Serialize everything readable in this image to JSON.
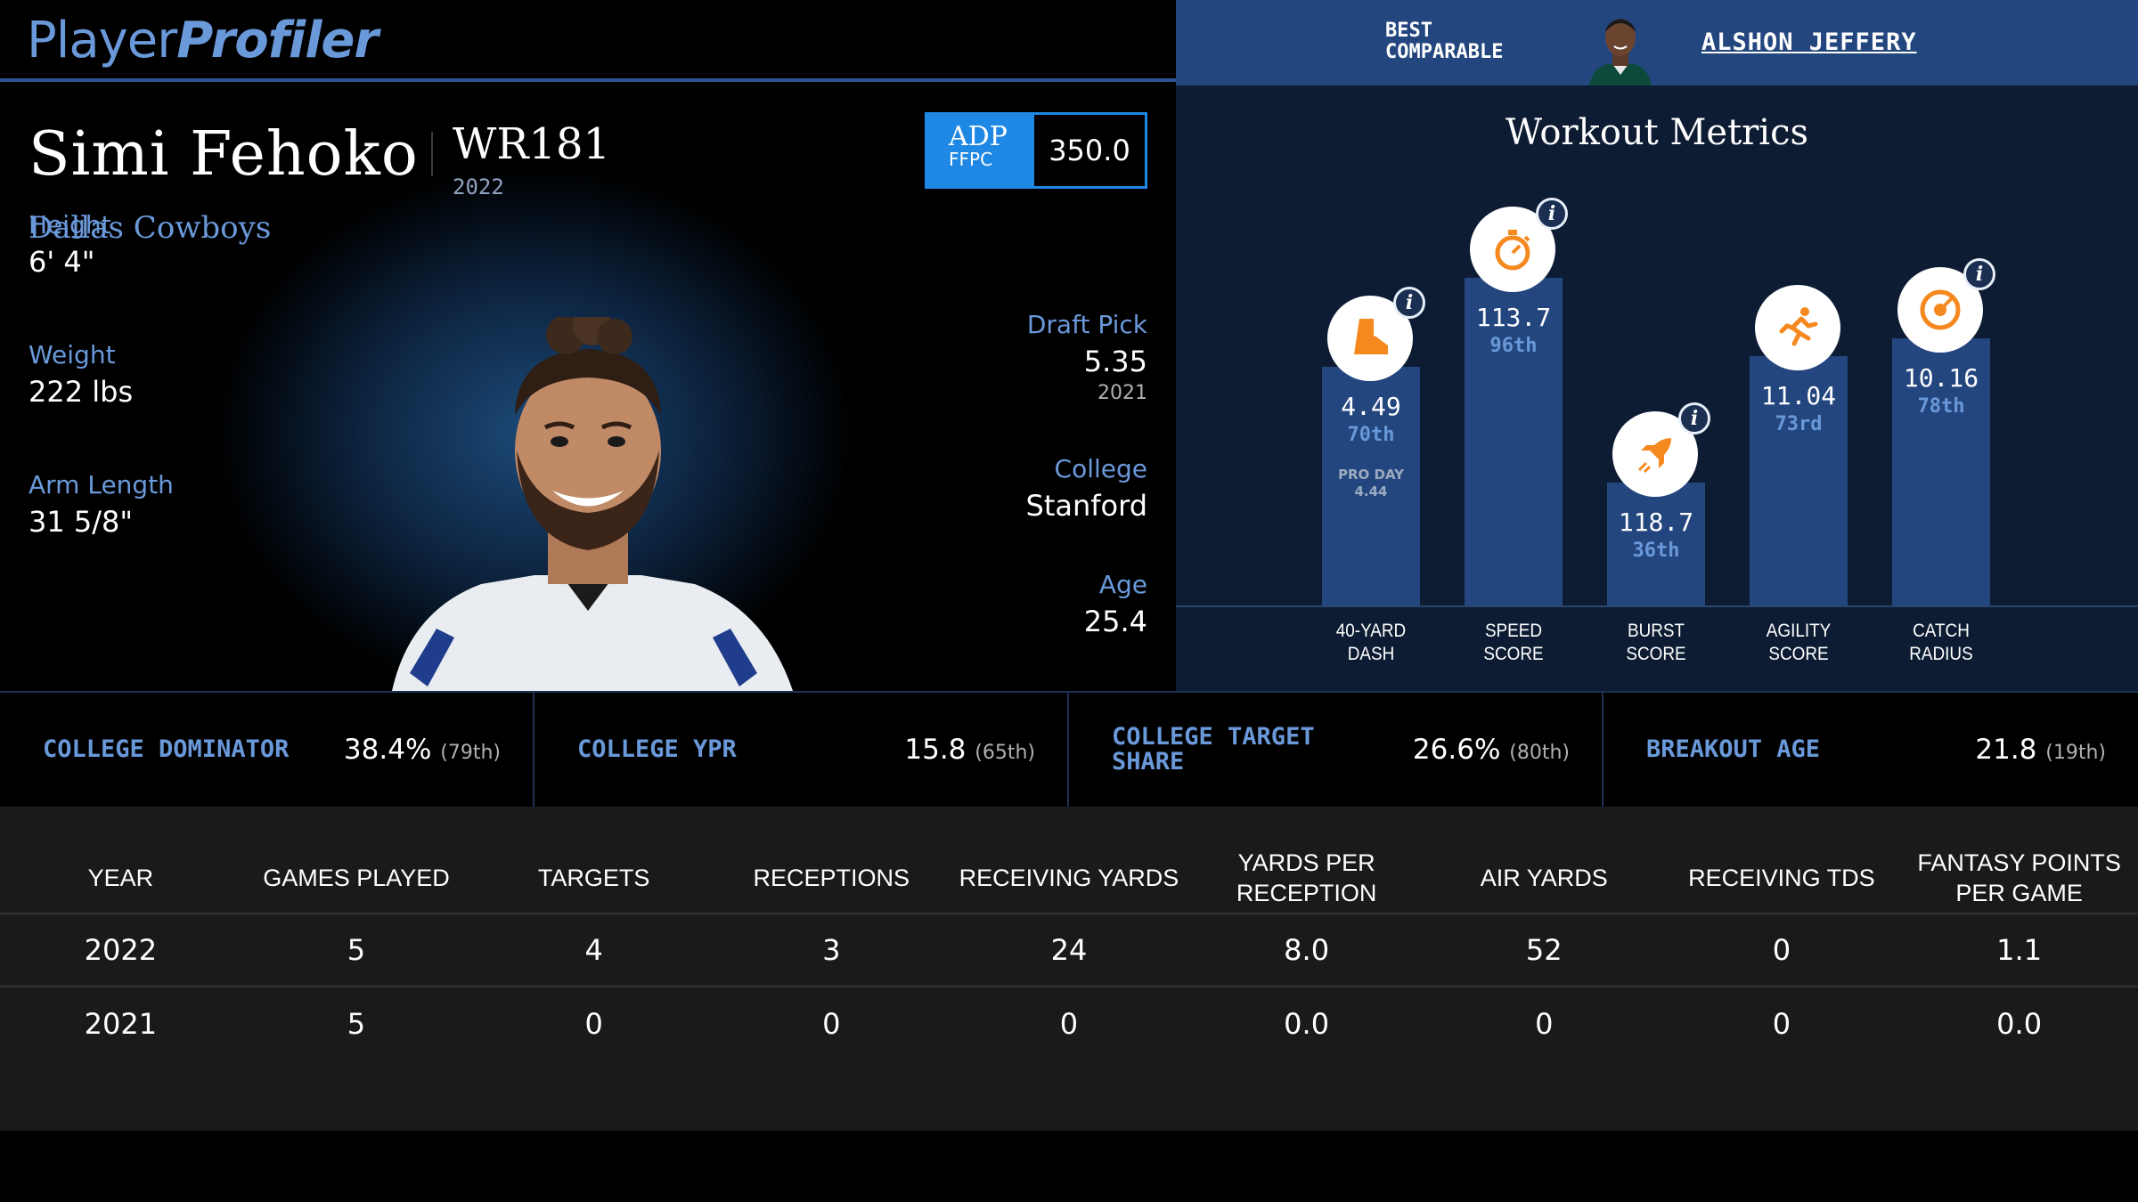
{
  "brand": {
    "logo_part1": "Player",
    "logo_part2": "Profiler"
  },
  "comparable": {
    "label_line1": "BEST",
    "label_line2": "COMPARABLE",
    "name": "ALSHON JEFFERY"
  },
  "player": {
    "name": "Simi Fehoko",
    "position": "WR181",
    "year": "2022",
    "team": "Dallas Cowboys",
    "adp": {
      "label": "ADP",
      "sublabel": "FFPC",
      "value": "350.0"
    },
    "height": {
      "label": "Height",
      "value": "6' 4\""
    },
    "weight": {
      "label": "Weight",
      "value": "222 lbs"
    },
    "arm_length": {
      "label": "Arm Length",
      "value": "31 5/8\""
    },
    "draft_pick": {
      "label": "Draft Pick",
      "value": "5.35",
      "sub": "2021"
    },
    "college": {
      "label": "College",
      "value": "Stanford"
    },
    "age": {
      "label": "Age",
      "value": "25.4"
    }
  },
  "workout": {
    "title": "Workout Metrics",
    "metrics": [
      {
        "icon": "shoe-icon",
        "value": "4.49",
        "percentile": "70th",
        "extra_label": "PRO DAY",
        "extra_value": "4.44",
        "label_line1": "40-YARD",
        "label_line2": "DASH",
        "percentile_num": 70
      },
      {
        "icon": "stopwatch-icon",
        "value": "113.7",
        "percentile": "96th",
        "label_line1": "SPEED",
        "label_line2": "SCORE",
        "percentile_num": 96
      },
      {
        "icon": "rocket-icon",
        "value": "118.7",
        "percentile": "36th",
        "label_line1": "BURST",
        "label_line2": "SCORE",
        "percentile_num": 36
      },
      {
        "icon": "runner-icon",
        "value": "11.04",
        "percentile": "73rd",
        "label_line1": "AGILITY",
        "label_line2": "SCORE",
        "percentile_num": 73
      },
      {
        "icon": "target-icon",
        "value": "10.16",
        "percentile": "78th",
        "label_line1": "CATCH",
        "label_line2": "RADIUS",
        "percentile_num": 78
      }
    ]
  },
  "college_stats": [
    {
      "label_line1": "COLLEGE DOMINATOR",
      "label_line2": "",
      "value": "38.4%",
      "rank": "(79th)"
    },
    {
      "label_line1": "COLLEGE YPR",
      "label_line2": "",
      "value": "15.8",
      "rank": "(65th)"
    },
    {
      "label_line1": "COLLEGE TARGET",
      "label_line2": "SHARE",
      "value": "26.6%",
      "rank": "(80th)"
    },
    {
      "label_line1": "BREAKOUT AGE",
      "label_line2": "",
      "value": "21.8",
      "rank": "(19th)"
    }
  ],
  "table": {
    "headers": [
      "YEAR",
      "GAMES PLAYED",
      "TARGETS",
      "RECEPTIONS",
      "RECEIVING YARDS",
      "YARDS PER RECEPTION",
      "AIR YARDS",
      "RECEIVING TDS",
      "FANTASY POINTS PER GAME"
    ],
    "rows": [
      [
        "2022",
        "5",
        "4",
        "3",
        "24",
        "8.0",
        "52",
        "0",
        "1.1"
      ],
      [
        "2021",
        "5",
        "0",
        "0",
        "0",
        "0.0",
        "0",
        "0",
        "0.0"
      ]
    ]
  },
  "colors": {
    "accent": "#6a99da",
    "bar": "#24467f",
    "icon_orange": "#f5891f",
    "adp_blue": "#1f88e5"
  }
}
